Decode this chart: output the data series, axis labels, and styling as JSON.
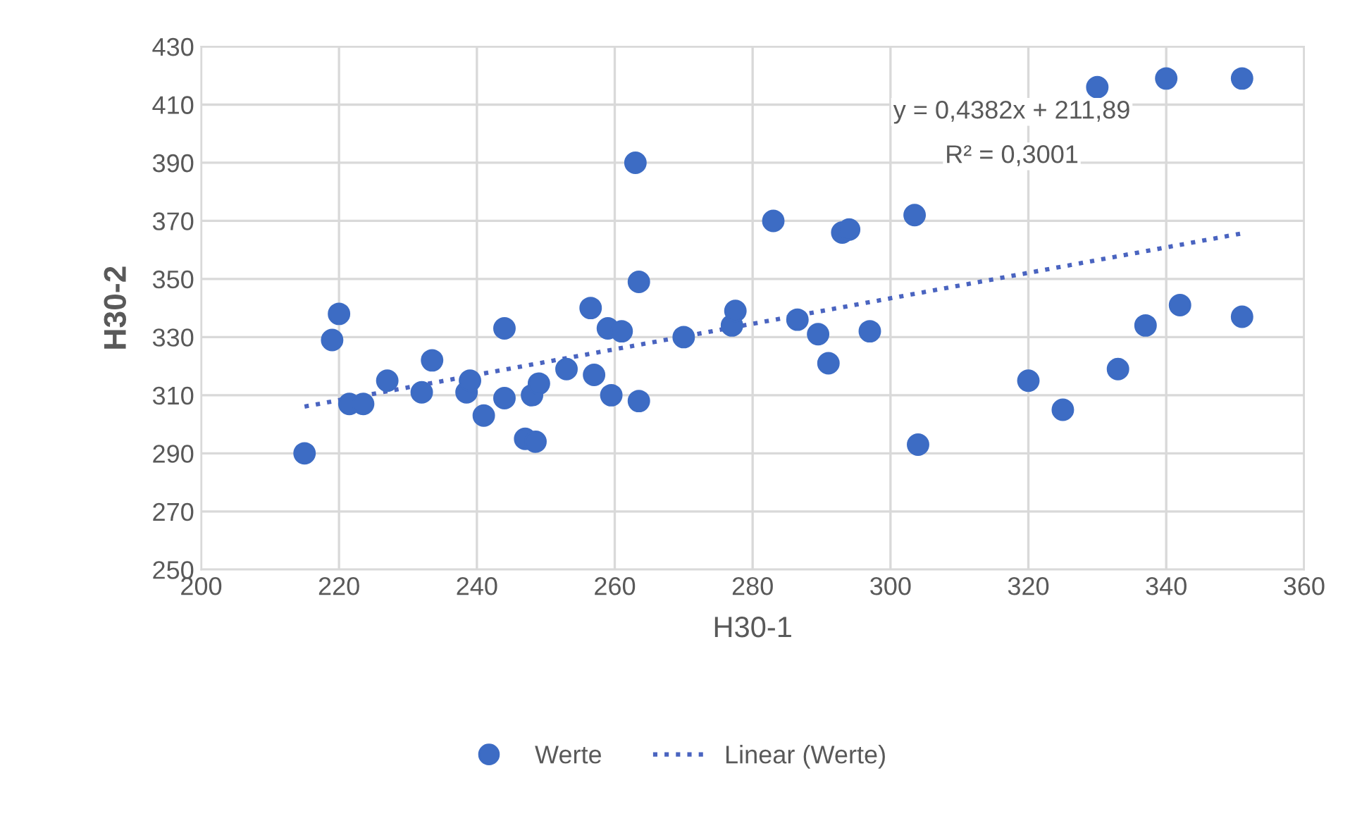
{
  "chart_data": {
    "type": "scatter",
    "xlabel": "H30-1",
    "ylabel": "H30-2",
    "xlim": [
      200,
      360
    ],
    "xticks": [
      200,
      220,
      240,
      260,
      280,
      300,
      320,
      340,
      360
    ],
    "ylim": [
      250,
      430
    ],
    "yticks": [
      250,
      270,
      290,
      310,
      330,
      350,
      370,
      390,
      410,
      430
    ],
    "grid": true,
    "legend": "bottom",
    "annotations": [
      "y = 0,4382x + 211,89",
      "R² = 0,3001"
    ],
    "series": [
      {
        "name": "Werte",
        "marker": "circle",
        "color": "#3d6cc4",
        "x": [
          215,
          219,
          220,
          221.5,
          223.5,
          227,
          232,
          233.5,
          238.5,
          239,
          241,
          244,
          244,
          247,
          248,
          248.5,
          249,
          253,
          256.5,
          257,
          259,
          259.5,
          261,
          263,
          263.5,
          263.5,
          270,
          277,
          277.5,
          283,
          286.5,
          289.5,
          291,
          293,
          294,
          297,
          303.5,
          304,
          320,
          325,
          330,
          333,
          337,
          340,
          342,
          351,
          351
        ],
        "values": [
          290,
          329,
          338,
          307,
          307,
          315,
          311,
          322,
          311,
          315,
          303,
          333,
          309,
          295,
          310,
          294,
          314,
          319,
          340,
          317,
          333,
          310,
          332,
          390,
          349,
          308,
          330,
          334,
          339,
          370,
          336,
          331,
          321,
          366,
          367,
          332,
          372,
          293,
          315,
          305,
          416,
          319,
          334,
          419,
          341,
          419,
          337
        ]
      },
      {
        "name": "Linear (Werte)",
        "type": "line",
        "line_style": "dotted",
        "color": "#4a64c0",
        "x": [
          215,
          351
        ],
        "values": [
          306.1,
          365.7
        ]
      }
    ]
  }
}
